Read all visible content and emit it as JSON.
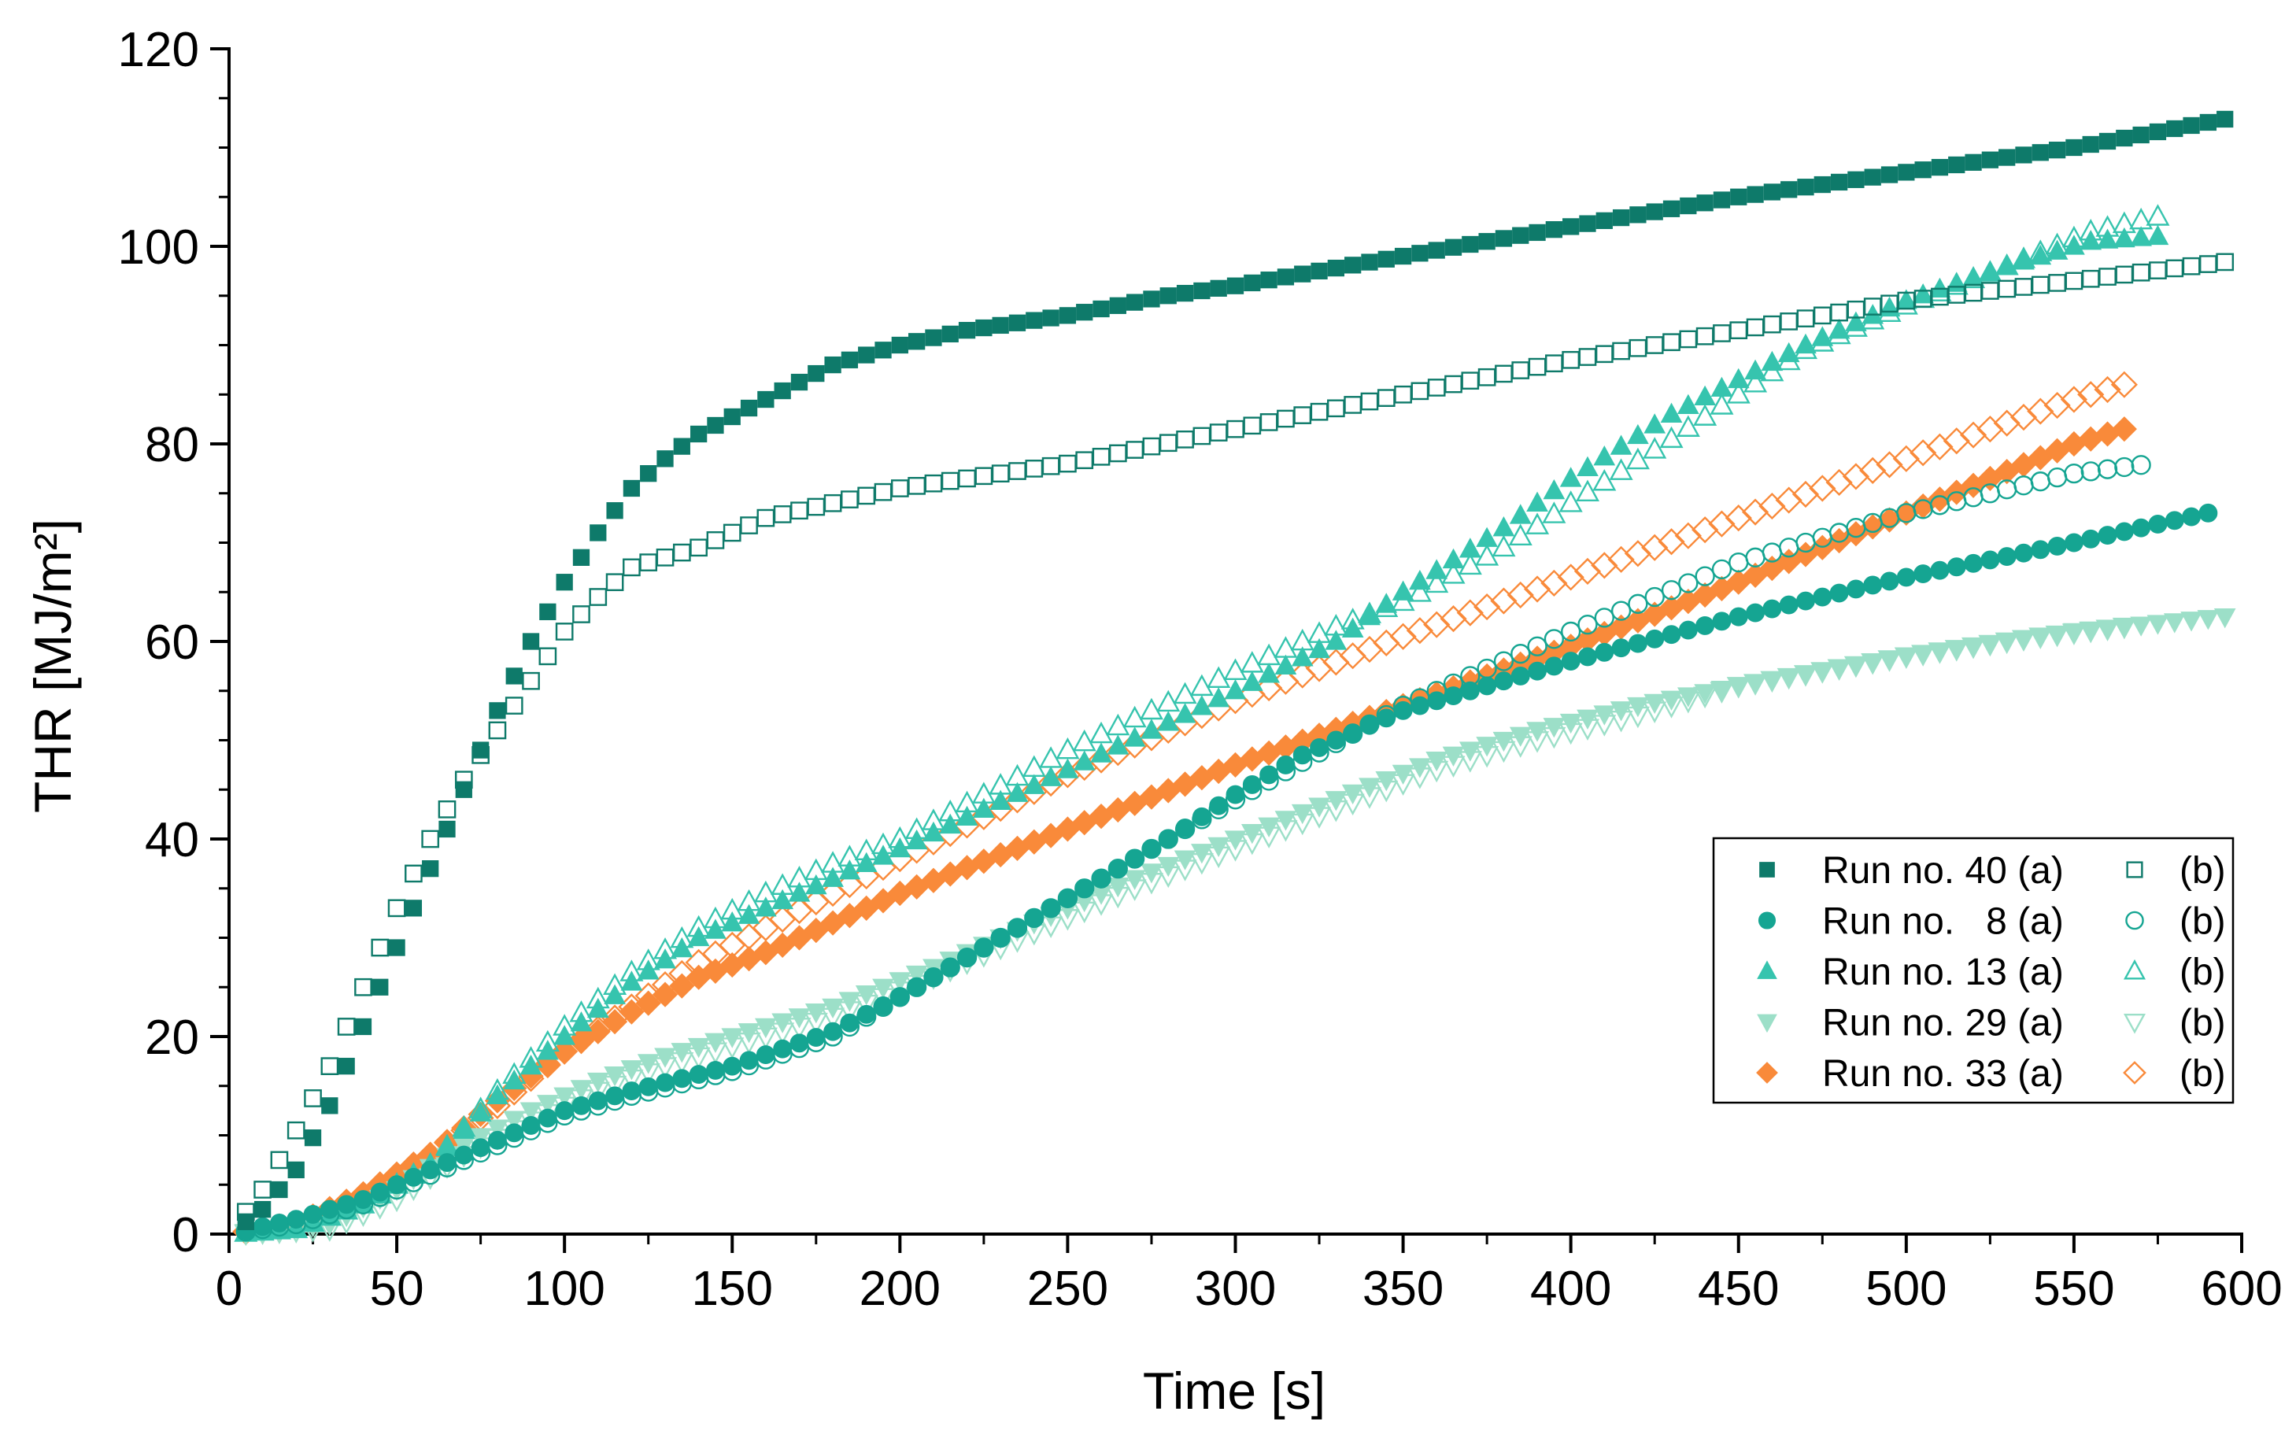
{
  "chart_data": {
    "type": "scatter",
    "title": "",
    "xlabel": "Time [s]",
    "ylabel": "THR [MJ/m²]",
    "xlim": [
      0,
      600
    ],
    "ylim": [
      0,
      120
    ],
    "xticks": [
      0,
      50,
      100,
      150,
      200,
      250,
      300,
      350,
      400,
      450,
      500,
      550,
      600
    ],
    "yticks": [
      0,
      20,
      40,
      60,
      80,
      100,
      120
    ],
    "grid": false,
    "legend_position": "lower-right",
    "legend": [
      {
        "label_a": "Run no. 40 (a)",
        "label_b": "(b)"
      },
      {
        "label_a": "Run no.   8 (a)",
        "label_b": "(b)"
      },
      {
        "label_a": "Run no. 13 (a)",
        "label_b": "(b)"
      },
      {
        "label_a": "Run no. 29 (a)",
        "label_b": "(b)"
      },
      {
        "label_a": "Run no. 33 (a)",
        "label_b": "(b)"
      }
    ],
    "series": [
      {
        "name": "Run no. 40 (a)",
        "marker": "square",
        "filled": true,
        "color": "#0e7a6a",
        "x_start": 5,
        "x_end": 597,
        "step": 5,
        "points": [
          [
            0,
            0
          ],
          [
            10,
            2.5
          ],
          [
            20,
            6.5
          ],
          [
            30,
            13
          ],
          [
            40,
            21
          ],
          [
            50,
            29
          ],
          [
            60,
            37
          ],
          [
            70,
            45
          ],
          [
            80,
            53
          ],
          [
            90,
            60
          ],
          [
            100,
            66
          ],
          [
            110,
            71
          ],
          [
            120,
            75.5
          ],
          [
            130,
            78.5
          ],
          [
            140,
            81
          ],
          [
            160,
            84.5
          ],
          [
            180,
            88
          ],
          [
            200,
            90
          ],
          [
            220,
            91.5
          ],
          [
            250,
            93
          ],
          [
            280,
            95
          ],
          [
            300,
            96
          ],
          [
            350,
            99
          ],
          [
            400,
            102
          ],
          [
            450,
            105
          ],
          [
            500,
            107.5
          ],
          [
            550,
            110
          ],
          [
            597,
            113
          ]
        ]
      },
      {
        "name": "Run no. 40 (b)",
        "marker": "square",
        "filled": false,
        "color": "#0e7a6a",
        "x_start": 5,
        "x_end": 597,
        "step": 5,
        "points": [
          [
            0,
            0
          ],
          [
            10,
            4.5
          ],
          [
            20,
            10.5
          ],
          [
            30,
            17
          ],
          [
            40,
            25
          ],
          [
            50,
            33
          ],
          [
            60,
            40
          ],
          [
            70,
            46
          ],
          [
            80,
            51
          ],
          [
            90,
            56
          ],
          [
            100,
            61
          ],
          [
            110,
            64.5
          ],
          [
            120,
            67.5
          ],
          [
            140,
            69.5
          ],
          [
            160,
            72.5
          ],
          [
            180,
            74
          ],
          [
            200,
            75.5
          ],
          [
            250,
            78
          ],
          [
            300,
            81.5
          ],
          [
            350,
            85
          ],
          [
            400,
            88.5
          ],
          [
            450,
            91.5
          ],
          [
            500,
            94.5
          ],
          [
            550,
            96.5
          ],
          [
            597,
            98.5
          ]
        ]
      },
      {
        "name": "Run no. 8 (a)",
        "marker": "circle",
        "filled": true,
        "color": "#15a592",
        "x_start": 5,
        "x_end": 590,
        "step": 5,
        "points": [
          [
            0,
            0
          ],
          [
            20,
            1.5
          ],
          [
            40,
            3.5
          ],
          [
            60,
            6.5
          ],
          [
            80,
            9.5
          ],
          [
            100,
            12.5
          ],
          [
            120,
            14.5
          ],
          [
            150,
            17
          ],
          [
            180,
            20.5
          ],
          [
            200,
            24
          ],
          [
            220,
            28
          ],
          [
            250,
            34
          ],
          [
            280,
            40
          ],
          [
            300,
            44.5
          ],
          [
            320,
            48.5
          ],
          [
            350,
            53
          ],
          [
            380,
            56
          ],
          [
            400,
            58
          ],
          [
            450,
            62.5
          ],
          [
            500,
            66.5
          ],
          [
            550,
            70
          ],
          [
            590,
            73
          ]
        ]
      },
      {
        "name": "Run no. 8 (b)",
        "marker": "circle",
        "filled": false,
        "color": "#15a592",
        "x_start": 5,
        "x_end": 573,
        "step": 5,
        "points": [
          [
            0,
            0
          ],
          [
            20,
            1
          ],
          [
            40,
            3
          ],
          [
            60,
            6
          ],
          [
            80,
            9
          ],
          [
            100,
            12
          ],
          [
            120,
            14
          ],
          [
            150,
            16.5
          ],
          [
            180,
            20
          ],
          [
            200,
            24
          ],
          [
            230,
            30
          ],
          [
            260,
            36
          ],
          [
            300,
            44
          ],
          [
            350,
            53.5
          ],
          [
            400,
            61
          ],
          [
            450,
            68
          ],
          [
            500,
            73
          ],
          [
            550,
            77
          ],
          [
            573,
            78
          ]
        ]
      },
      {
        "name": "Run no. 13 (a)",
        "marker": "triangle",
        "filled": true,
        "color": "#36c4ae",
        "x_start": 5,
        "x_end": 575,
        "step": 5,
        "points": [
          [
            0,
            0
          ],
          [
            20,
            0.5
          ],
          [
            40,
            3
          ],
          [
            60,
            7
          ],
          [
            80,
            14
          ],
          [
            100,
            20
          ],
          [
            120,
            25.5
          ],
          [
            140,
            30
          ],
          [
            160,
            33
          ],
          [
            180,
            36
          ],
          [
            200,
            39
          ],
          [
            250,
            47
          ],
          [
            300,
            55
          ],
          [
            330,
            60
          ],
          [
            350,
            65
          ],
          [
            380,
            71.5
          ],
          [
            400,
            76.5
          ],
          [
            430,
            83
          ],
          [
            450,
            86.5
          ],
          [
            470,
            90
          ],
          [
            500,
            94.5
          ],
          [
            530,
            98
          ],
          [
            555,
            100.5
          ],
          [
            575,
            101
          ]
        ]
      },
      {
        "name": "Run no. 13 (b)",
        "marker": "triangle",
        "filled": false,
        "color": "#36c4ae",
        "x_start": 5,
        "x_end": 575,
        "step": 5,
        "points": [
          [
            0,
            0
          ],
          [
            20,
            0.5
          ],
          [
            40,
            3
          ],
          [
            60,
            7
          ],
          [
            80,
            14.5
          ],
          [
            100,
            21
          ],
          [
            120,
            26.5
          ],
          [
            140,
            31
          ],
          [
            160,
            34.5
          ],
          [
            180,
            37.5
          ],
          [
            200,
            40
          ],
          [
            250,
            49
          ],
          [
            300,
            57
          ],
          [
            330,
            61.5
          ],
          [
            350,
            64
          ],
          [
            380,
            69.5
          ],
          [
            400,
            74
          ],
          [
            430,
            80.5
          ],
          [
            450,
            85
          ],
          [
            470,
            89.5
          ],
          [
            500,
            94
          ],
          [
            530,
            98
          ],
          [
            555,
            101.5
          ],
          [
            575,
            103
          ]
        ]
      },
      {
        "name": "Run no. 29 (a)",
        "marker": "triangle-down",
        "filled": true,
        "color": "#9cdfc8",
        "x_start": 5,
        "x_end": 595,
        "step": 5,
        "points": [
          [
            0,
            0
          ],
          [
            30,
            1
          ],
          [
            50,
            4.5
          ],
          [
            70,
            9
          ],
          [
            90,
            12.5
          ],
          [
            110,
            15.5
          ],
          [
            130,
            18
          ],
          [
            150,
            20
          ],
          [
            180,
            23
          ],
          [
            210,
            27
          ],
          [
            240,
            31.5
          ],
          [
            270,
            36
          ],
          [
            300,
            40
          ],
          [
            330,
            44
          ],
          [
            360,
            48
          ],
          [
            390,
            51
          ],
          [
            420,
            53.5
          ],
          [
            450,
            55.5
          ],
          [
            500,
            58.5
          ],
          [
            550,
            61
          ],
          [
            595,
            62.5
          ]
        ]
      },
      {
        "name": "Run no. 29 (b)",
        "marker": "triangle-down",
        "filled": false,
        "color": "#9cdfc8",
        "x_start": 5,
        "x_end": 565,
        "step": 5,
        "points": [
          [
            0,
            0
          ],
          [
            30,
            0.5
          ],
          [
            50,
            3.5
          ],
          [
            70,
            8
          ],
          [
            90,
            11.5
          ],
          [
            110,
            14.5
          ],
          [
            130,
            17
          ],
          [
            150,
            19
          ],
          [
            180,
            22
          ],
          [
            210,
            26
          ],
          [
            240,
            30.5
          ],
          [
            270,
            35
          ],
          [
            300,
            39
          ],
          [
            330,
            43
          ],
          [
            360,
            47
          ],
          [
            390,
            50
          ],
          [
            420,
            52.5
          ],
          [
            450,
            55.5
          ],
          [
            500,
            58.5
          ],
          [
            540,
            60.5
          ],
          [
            565,
            61.5
          ]
        ]
      },
      {
        "name": "Run no. 33 (a)",
        "marker": "diamond",
        "filled": true,
        "color": "#f98a3a",
        "x_start": 5,
        "x_end": 565,
        "step": 5,
        "points": [
          [
            0,
            0
          ],
          [
            20,
            1
          ],
          [
            40,
            4
          ],
          [
            60,
            8
          ],
          [
            80,
            13.5
          ],
          [
            100,
            18.5
          ],
          [
            120,
            22.5
          ],
          [
            140,
            26
          ],
          [
            160,
            28.5
          ],
          [
            200,
            34.5
          ],
          [
            250,
            41
          ],
          [
            300,
            47.5
          ],
          [
            350,
            53.5
          ],
          [
            400,
            59.5
          ],
          [
            450,
            66
          ],
          [
            500,
            73
          ],
          [
            550,
            80
          ],
          [
            565,
            81.5
          ]
        ]
      },
      {
        "name": "Run no. 33 (b)",
        "marker": "diamond",
        "filled": false,
        "color": "#f98a3a",
        "x_start": 5,
        "x_end": 565,
        "step": 5,
        "points": [
          [
            0,
            0
          ],
          [
            20,
            1
          ],
          [
            40,
            4
          ],
          [
            60,
            8
          ],
          [
            80,
            13
          ],
          [
            100,
            18.5
          ],
          [
            120,
            23
          ],
          [
            140,
            27.5
          ],
          [
            160,
            31
          ],
          [
            200,
            38
          ],
          [
            250,
            46.5
          ],
          [
            300,
            54
          ],
          [
            350,
            60.5
          ],
          [
            400,
            66.5
          ],
          [
            450,
            72.5
          ],
          [
            500,
            78.5
          ],
          [
            550,
            84.5
          ],
          [
            565,
            86
          ]
        ]
      }
    ]
  }
}
